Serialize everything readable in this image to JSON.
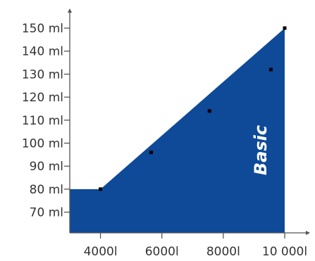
{
  "chart_data": {
    "type": "area",
    "title": "",
    "xlabel": "",
    "ylabel": "",
    "x_ticks": [
      {
        "value": 4000,
        "label": "4000l"
      },
      {
        "value": 6000,
        "label": "6000l"
      },
      {
        "value": 8000,
        "label": "8000l"
      },
      {
        "value": 10000,
        "label": "10 000l"
      }
    ],
    "y_ticks": [
      {
        "value": 70,
        "label": "70 ml"
      },
      {
        "value": 80,
        "label": "80 ml"
      },
      {
        "value": 90,
        "label": "90 ml"
      },
      {
        "value": 100,
        "label": "100 ml"
      },
      {
        "value": 110,
        "label": "110 ml"
      },
      {
        "value": 120,
        "label": "120 ml"
      },
      {
        "value": 130,
        "label": "130 ml"
      },
      {
        "value": 140,
        "label": "140 ml"
      },
      {
        "value": 150,
        "label": "150 ml"
      }
    ],
    "xlim": [
      3000,
      10000
    ],
    "ylim": [
      61,
      150
    ],
    "series": [
      {
        "name": "Basic",
        "color": "#0e4a98",
        "area": [
          {
            "x": 3000,
            "y": 80
          },
          {
            "x": 4000,
            "y": 80
          },
          {
            "x": 10000,
            "y": 150
          }
        ],
        "markers": [
          {
            "x": 4000,
            "y": 80
          },
          {
            "x": 5650,
            "y": 96
          },
          {
            "x": 7550,
            "y": 114
          },
          {
            "x": 9550,
            "y": 132
          },
          {
            "x": 10000,
            "y": 150
          }
        ]
      }
    ],
    "grid": false,
    "legend": "none"
  }
}
